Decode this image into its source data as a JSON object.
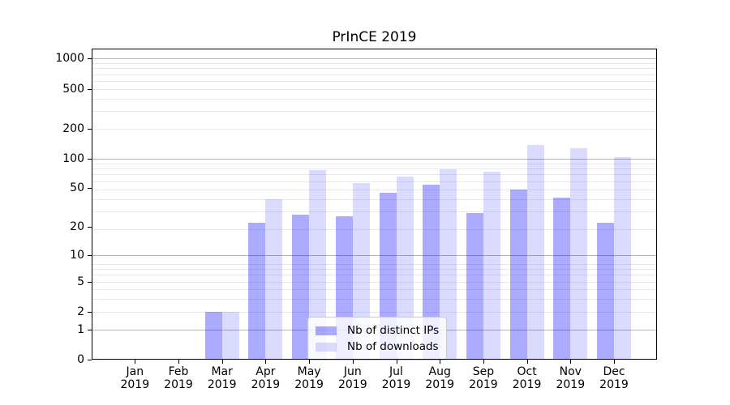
{
  "title": "PrInCE 2019",
  "chart_data": {
    "type": "bar",
    "title": "PrInCE 2019",
    "categories": [
      "Jan",
      "Feb",
      "Mar",
      "Apr",
      "May",
      "Jun",
      "Jul",
      "Aug",
      "Sep",
      "Oct",
      "Nov",
      "Dec"
    ],
    "x_year_label": "2019",
    "series": [
      {
        "key": "ips",
        "name": "Nb of distinct IPs",
        "color": "rgba(0,0,255,0.33)",
        "values": [
          0,
          0,
          2,
          22,
          27,
          26,
          45,
          54,
          28,
          49,
          40,
          22
        ]
      },
      {
        "key": "downloads",
        "name": "Nb of downloads",
        "color": "rgba(0,0,255,0.14)",
        "values": [
          0,
          0,
          2,
          39,
          77,
          56,
          66,
          78,
          74,
          136,
          127,
          103
        ]
      }
    ],
    "xlabel": "",
    "ylabel": "",
    "y_axis": {
      "scale": "log1p",
      "tick_values": [
        0,
        1,
        2,
        5,
        10,
        20,
        50,
        100,
        200,
        500,
        1000
      ],
      "tick_labels": [
        "0",
        "1",
        "2",
        "5",
        "10",
        "20",
        "50",
        "100",
        "200",
        "500",
        "1000"
      ],
      "ylim": [
        0,
        1200
      ]
    },
    "grid": {
      "orientation": "horizontal",
      "major_values": [
        1,
        10,
        100,
        1000
      ],
      "major_color": "#b5b5b5",
      "minor_color": "#e9e9e9"
    },
    "legend": {
      "position": "bottom-center"
    }
  }
}
